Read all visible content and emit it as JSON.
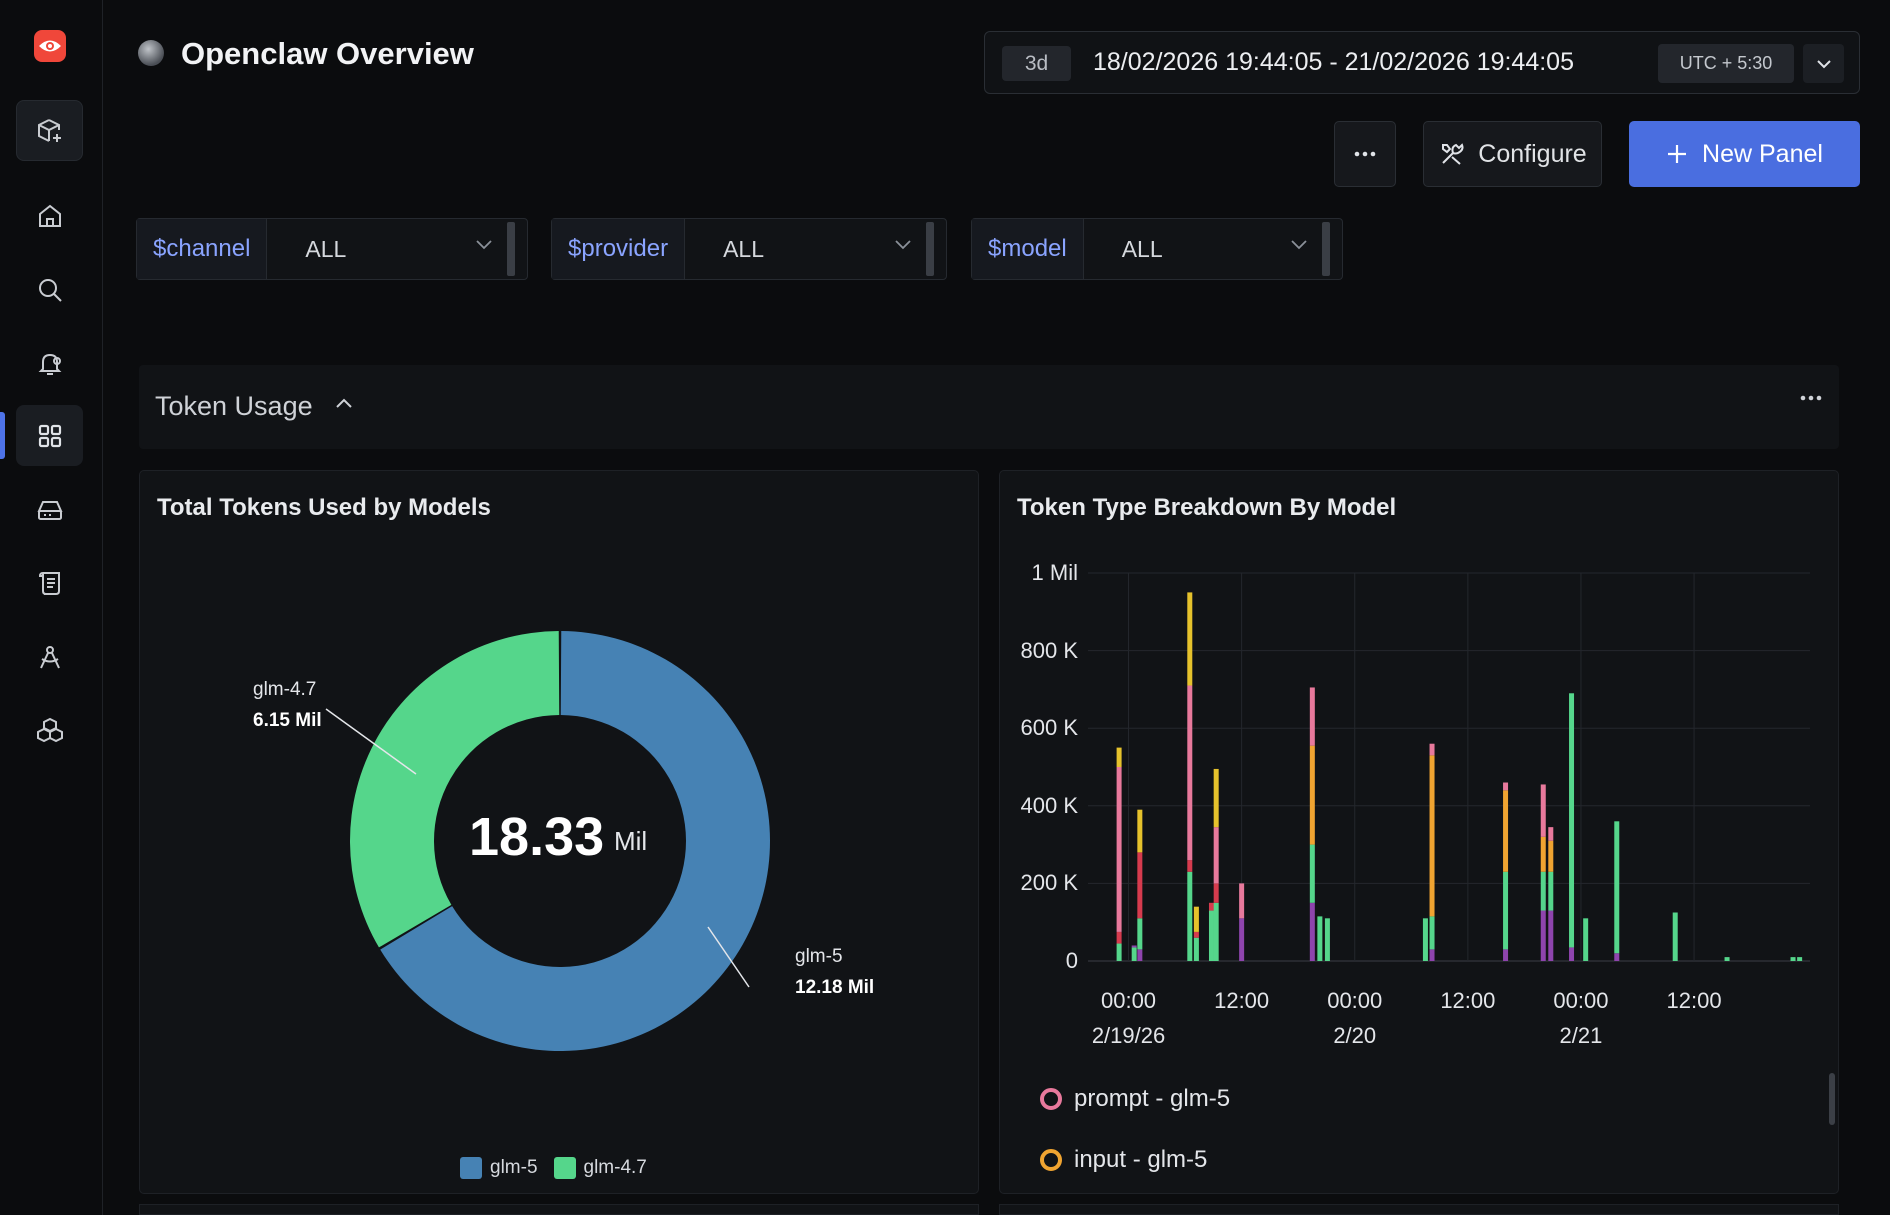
{
  "app": {
    "title": "Openclaw Overview"
  },
  "timebar": {
    "range_chip": "3d",
    "range": "18/02/2026 19:44:05 - 21/02/2026 19:44:05",
    "timezone": "UTC + 5:30"
  },
  "toolbar": {
    "more_label": "···",
    "configure_label": "Configure",
    "new_panel_label": "New Panel"
  },
  "variables": [
    {
      "name": "$channel",
      "value": "ALL"
    },
    {
      "name": "$provider",
      "value": "ALL"
    },
    {
      "name": "$model",
      "value": "ALL"
    }
  ],
  "section": {
    "title": "Token Usage"
  },
  "colors": {
    "accent": "#4a6ee0",
    "glm5": "#4682b4",
    "glm47": "#55d68b",
    "prompt_glm5": "#e8799c",
    "input_glm5": "#f0a431",
    "output_red": "#d63b4e",
    "yellow": "#e6c22c",
    "purple": "#8e44ad"
  },
  "panels": {
    "donut": {
      "title": "Total Tokens Used by Models",
      "center_value": "18.33",
      "center_unit": "Mil",
      "slices": [
        {
          "label": "glm-5",
          "value": "12.18 Mil"
        },
        {
          "label": "glm-4.7",
          "value": "6.15 Mil"
        }
      ],
      "legend": [
        "glm-5",
        "glm-4.7"
      ]
    },
    "bars": {
      "title": "Token Type Breakdown By Model",
      "y_ticks": [
        "0",
        "200 K",
        "400 K",
        "600 K",
        "800 K",
        "1 Mil"
      ],
      "x_ticks": [
        {
          "time": "00:00",
          "date": "2/19/26"
        },
        {
          "time": "12:00",
          "date": ""
        },
        {
          "time": "00:00",
          "date": "2/20"
        },
        {
          "time": "12:00",
          "date": ""
        },
        {
          "time": "00:00",
          "date": "2/21"
        },
        {
          "time": "12:00",
          "date": ""
        }
      ],
      "legend": [
        {
          "label": "prompt - glm-5"
        },
        {
          "label": "input - glm-5"
        }
      ]
    }
  },
  "chart_data": [
    {
      "type": "pie",
      "title": "Total Tokens Used by Models",
      "categories": [
        "glm-5",
        "glm-4.7"
      ],
      "values": [
        12.18,
        6.15
      ],
      "unit": "Mil",
      "total": 18.33,
      "legend_position": "bottom"
    },
    {
      "type": "bar",
      "title": "Token Type Breakdown By Model",
      "stacked": true,
      "x_unit": "hours since 2/19/26 00:00",
      "ylim": [
        0,
        1000000
      ],
      "grid": true,
      "legend_position": "bottom",
      "bars": [
        {
          "x": -1.0,
          "segments": [
            [
              "glm47",
              45000
            ],
            [
              "output_red",
              30000
            ],
            [
              "prompt_glm5",
              425000
            ],
            [
              "yellow",
              50000
            ]
          ]
        },
        {
          "x": 0.6,
          "segments": [
            [
              "glm47",
              35000
            ],
            [
              "purple",
              5000
            ]
          ]
        },
        {
          "x": 1.2,
          "segments": [
            [
              "purple",
              30000
            ],
            [
              "glm47",
              80000
            ],
            [
              "output_red",
              170000
            ],
            [
              "yellow",
              110000
            ]
          ]
        },
        {
          "x": 6.5,
          "segments": [
            [
              "glm47",
              230000
            ],
            [
              "output_red",
              30000
            ],
            [
              "prompt_glm5",
              450000
            ],
            [
              "yellow",
              240000
            ]
          ]
        },
        {
          "x": 7.2,
          "segments": [
            [
              "glm47",
              60000
            ],
            [
              "output_red",
              15000
            ],
            [
              "yellow",
              65000
            ]
          ]
        },
        {
          "x": 8.8,
          "segments": [
            [
              "glm47",
              130000
            ],
            [
              "output_red",
              20000
            ]
          ]
        },
        {
          "x": 9.3,
          "segments": [
            [
              "glm47",
              150000
            ],
            [
              "output_red",
              50000
            ],
            [
              "prompt_glm5",
              145000
            ],
            [
              "yellow",
              150000
            ]
          ]
        },
        {
          "x": 12.0,
          "segments": [
            [
              "purple",
              110000
            ],
            [
              "prompt_glm5",
              90000
            ]
          ]
        },
        {
          "x": 19.5,
          "segments": [
            [
              "purple",
              150000
            ],
            [
              "glm47",
              150000
            ],
            [
              "input_glm5",
              255000
            ],
            [
              "prompt_glm5",
              150000
            ]
          ]
        },
        {
          "x": 20.3,
          "segments": [
            [
              "glm47",
              115000
            ]
          ]
        },
        {
          "x": 21.1,
          "segments": [
            [
              "glm47",
              110000
            ]
          ]
        },
        {
          "x": 31.5,
          "segments": [
            [
              "glm47",
              110000
            ]
          ]
        },
        {
          "x": 32.2,
          "segments": [
            [
              "purple",
              30000
            ],
            [
              "glm47",
              85000
            ],
            [
              "input_glm5",
              415000
            ],
            [
              "prompt_glm5",
              30000
            ]
          ]
        },
        {
          "x": 40.0,
          "segments": [
            [
              "purple",
              30000
            ],
            [
              "glm47",
              200000
            ],
            [
              "input_glm5",
              210000
            ],
            [
              "prompt_glm5",
              20000
            ]
          ]
        },
        {
          "x": 44.0,
          "segments": [
            [
              "purple",
              130000
            ],
            [
              "glm47",
              100000
            ],
            [
              "input_glm5",
              90000
            ],
            [
              "prompt_glm5",
              135000
            ]
          ]
        },
        {
          "x": 44.8,
          "segments": [
            [
              "purple",
              130000
            ],
            [
              "glm47",
              100000
            ],
            [
              "input_glm5",
              80000
            ],
            [
              "prompt_glm5",
              35000
            ]
          ]
        },
        {
          "x": 47.0,
          "segments": [
            [
              "purple",
              35000
            ],
            [
              "glm47",
              655000
            ]
          ]
        },
        {
          "x": 48.5,
          "segments": [
            [
              "glm47",
              110000
            ]
          ]
        },
        {
          "x": 51.8,
          "segments": [
            [
              "purple",
              20000
            ],
            [
              "glm47",
              340000
            ]
          ]
        },
        {
          "x": 58.0,
          "segments": [
            [
              "glm47",
              125000
            ]
          ]
        },
        {
          "x": 63.5,
          "segments": [
            [
              "glm47",
              10000
            ]
          ]
        },
        {
          "x": 70.5,
          "segments": [
            [
              "glm47",
              10000
            ]
          ]
        },
        {
          "x": 71.2,
          "segments": [
            [
              "glm47",
              10000
            ]
          ]
        }
      ]
    }
  ]
}
